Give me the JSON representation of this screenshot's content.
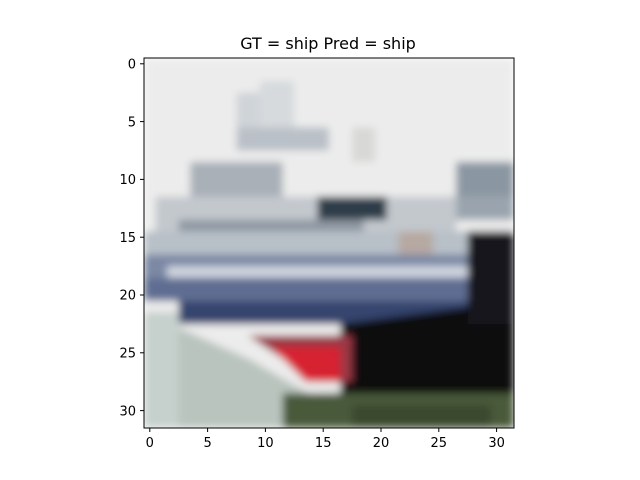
{
  "figure": {
    "title": "GT = ship Pred = ship",
    "image_subject": "low-resolution photo of a white ship with a dark hull and red bow accent",
    "grid_size": 32,
    "x_ticks": [
      "0",
      "5",
      "10",
      "15",
      "20",
      "25",
      "30"
    ],
    "y_ticks": [
      "0",
      "5",
      "10",
      "15",
      "20",
      "25",
      "30"
    ]
  },
  "colors": {
    "sky": "#ebebeb",
    "superstructure": "#c8ccd0",
    "window_dark": "#2e3a48",
    "hull_blue": "#34446e",
    "hull_black": "#0b0a0e",
    "red_accent": "#d62030",
    "water_green": "#4a5a3a",
    "foreground_pale": "#bfcac3"
  }
}
